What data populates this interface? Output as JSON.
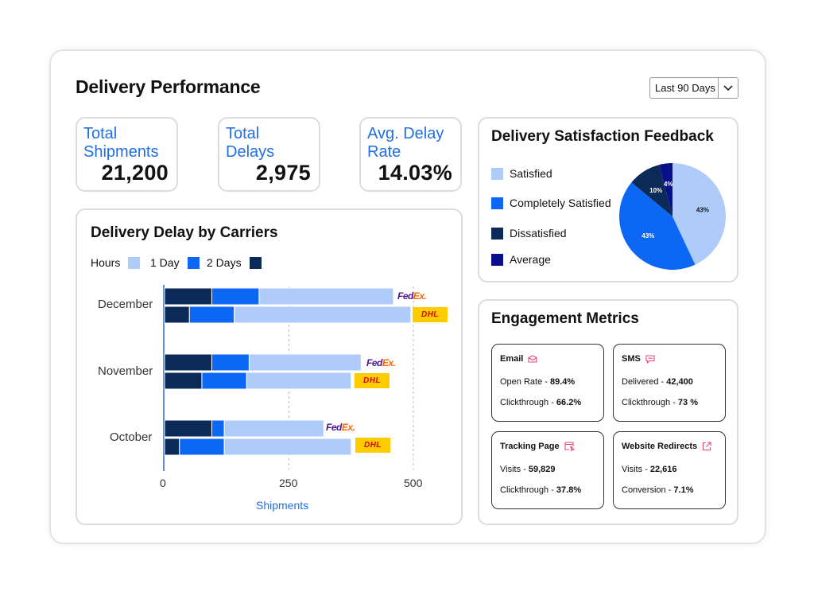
{
  "header": {
    "title": "Delivery Performance",
    "range_selected": "Last 90 Days"
  },
  "kpis": [
    {
      "label": "Total Shipments",
      "value": "21,200"
    },
    {
      "label": "Total Delays",
      "value": "2,975"
    },
    {
      "label": "Avg. Delay Rate",
      "value": "14.03%"
    }
  ],
  "carriers_chart": {
    "title": "Delivery Delay by Carriers",
    "legend": [
      {
        "label": "Hours",
        "color": "#aecbf9"
      },
      {
        "label": "1 Day",
        "color": "#0d67f5"
      },
      {
        "label": "2 Days",
        "color": "#0c2a57"
      }
    ],
    "xlabel": "Shipments",
    "ticks": [
      "0",
      "250",
      "500"
    ]
  },
  "chart_data": {
    "type": "bar",
    "orientation": "horizontal-stacked",
    "title": "Delivery Delay by Carriers",
    "xlabel": "Shipments",
    "xlim": [
      0,
      500
    ],
    "categories": [
      "December",
      "November",
      "October"
    ],
    "carriers": [
      "FedEx",
      "DHL"
    ],
    "series": [
      {
        "name": "2 Days",
        "color": "#0c2a57",
        "values": {
          "December": [
            95,
            50
          ],
          "November": [
            95,
            75
          ],
          "October": [
            95,
            30
          ]
        }
      },
      {
        "name": "1 Day",
        "color": "#0d67f5",
        "values": {
          "December": [
            95,
            90
          ],
          "November": [
            75,
            90
          ],
          "October": [
            25,
            90
          ]
        }
      },
      {
        "name": "Hours",
        "color": "#aecbf9",
        "values": {
          "December": [
            270,
            355
          ],
          "November": [
            225,
            210
          ],
          "October": [
            200,
            255
          ]
        }
      }
    ]
  },
  "satisfaction": {
    "title": "Delivery Satisfaction Feedback",
    "legend": [
      {
        "label": "Satisfied",
        "color": "#aecbf9",
        "pct": "43%"
      },
      {
        "label": "Completely Satisfied",
        "color": "#0d67f5",
        "pct": "43%"
      },
      {
        "label": "Dissatisfied",
        "color": "#0c2a57",
        "pct": "10%"
      },
      {
        "label": "Average",
        "color": "#0a0f8a",
        "pct": "4%"
      }
    ]
  },
  "pie_data": {
    "type": "pie",
    "values": [
      43,
      43,
      10,
      4
    ]
  },
  "engagement": {
    "title": "Engagement Metrics",
    "email": {
      "title": "Email",
      "l1_label": "Open Rate - ",
      "l1_value": "89.4%",
      "l2_label": "Clickthrough - ",
      "l2_value": "66.2%"
    },
    "sms": {
      "title": "SMS",
      "l1_label": "Delivered - ",
      "l1_value": "42,400",
      "l2_label": "Clickthrough - ",
      "l2_value": "73 %"
    },
    "tracking": {
      "title": "Tracking Page",
      "l1_label": "Visits - ",
      "l1_value": "59,829",
      "l2_label": "Clickthrough - ",
      "l2_value": "37.8%"
    },
    "website": {
      "title": "Website Redirects",
      "l1_label": "Visits - ",
      "l1_value": "22,616",
      "l2_label": "Conversion - ",
      "l2_value": "7.1%"
    }
  },
  "logos": {
    "fedex_fe": "Fed",
    "fedex_ex": "Ex.",
    "dhl": "DHL"
  }
}
